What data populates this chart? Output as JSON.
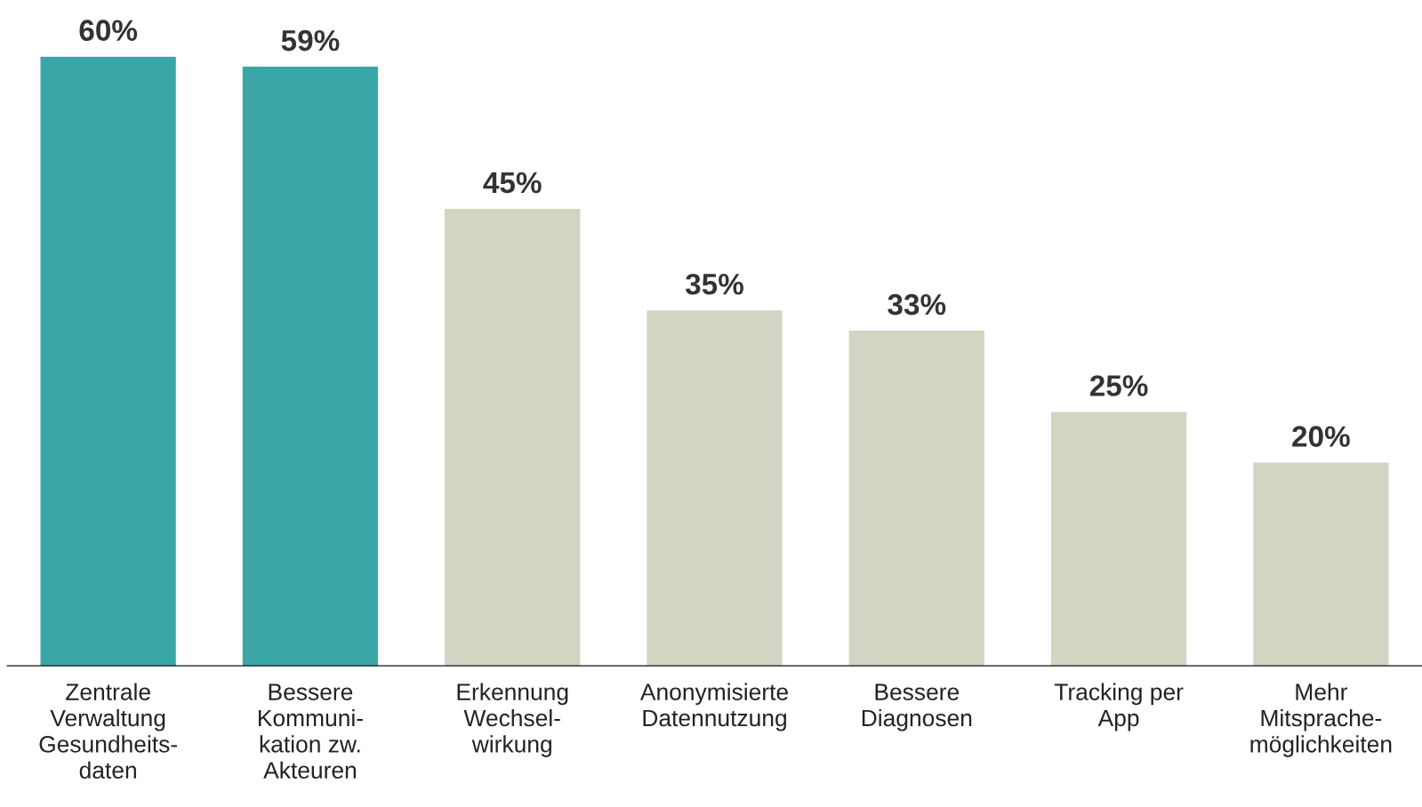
{
  "chart_data": {
    "type": "bar",
    "categories": [
      "Zentrale\nVerwaltung\nGesundheits-\ndaten",
      "Bessere\nKommuni-\nkation zw.\nAkteuren",
      "Erkennung\nWechsel-\nwirkung",
      "Anonymisierte\nDatennutzung",
      "Bessere\nDiagnosen",
      "Tracking per\nApp",
      "Mehr\nMitsprache-\nmöglichkeiten"
    ],
    "values": [
      60,
      59,
      45,
      35,
      33,
      25,
      20
    ],
    "colors": [
      "#3aa6a8",
      "#3aa6a8",
      "#d3d4c2",
      "#d3d4c2",
      "#d3d4c2",
      "#d3d4c2",
      "#d3d4c2"
    ],
    "value_labels": [
      "60%",
      "59%",
      "45%",
      "35%",
      "33%",
      "25%",
      "20%"
    ],
    "grid": false,
    "legend": false
  }
}
